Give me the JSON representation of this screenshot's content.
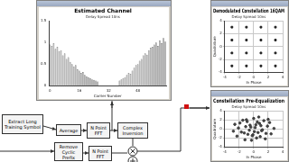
{
  "chart_data": [
    {
      "type": "bar",
      "title": "Estimated Channel",
      "subtitle": "Delay Spread 10ns",
      "x_label": "Carrier Number",
      "categories": [
        "0",
        null,
        null,
        null,
        null,
        null,
        null,
        null,
        null,
        null,
        null,
        null,
        null,
        null,
        null,
        null,
        "16",
        null,
        null,
        null,
        null,
        null,
        null,
        null,
        null,
        null,
        null,
        null,
        null,
        null,
        null,
        null,
        "32",
        null,
        null,
        null,
        null,
        null,
        null,
        null,
        null,
        null,
        null,
        null,
        null,
        null,
        null,
        null,
        "48",
        null,
        null,
        null,
        null,
        null,
        null,
        null,
        null,
        null,
        null,
        null,
        null,
        null,
        null,
        null
      ],
      "values": [
        0.95,
        0.92,
        0.98,
        0.85,
        0.9,
        0.8,
        0.82,
        0.7,
        0.75,
        0.62,
        0.66,
        0.55,
        0.5,
        0.45,
        0.48,
        0.38,
        0.35,
        0.3,
        0.32,
        0.25,
        0.22,
        0.2,
        0.18,
        0.15,
        0.14,
        0.12,
        0.1,
        null,
        null,
        null,
        null,
        null,
        null,
        null,
        null,
        null,
        null,
        null,
        0.12,
        0.15,
        0.18,
        0.2,
        0.25,
        0.3,
        0.28,
        0.35,
        0.42,
        0.48,
        0.5,
        0.58,
        0.62,
        0.7,
        0.75,
        0.72,
        0.82,
        0.88,
        0.9,
        0.95,
        1.0,
        0.92,
        1.05,
        0.98,
        1.1,
        1.02
      ],
      "color": "#b0b0b0",
      "ylim": [
        0,
        1.5
      ],
      "yticks": [
        0,
        0.5,
        1,
        1.5
      ],
      "grid": false
    },
    {
      "type": "scatter",
      "title": "Demodulated Constellation 16QAM",
      "subtitle": "Delay Spread 10ns",
      "x_label": "In Phase",
      "y_label": "Quadrature",
      "x": [
        -3,
        -1,
        1,
        3,
        -3,
        -1,
        1,
        3,
        -3,
        -1,
        1,
        3,
        -3,
        -1,
        1,
        3
      ],
      "values": [
        3,
        3,
        3,
        3,
        1,
        1,
        1,
        1,
        -1,
        -1,
        -1,
        -1,
        -3,
        -3,
        -3,
        -3
      ],
      "color": "#202020",
      "marker": "square",
      "xlim": [
        -4,
        4
      ],
      "xticks": [
        -4,
        -2,
        0,
        2,
        4
      ],
      "ylim": [
        -4,
        4
      ],
      "yticks": [
        -4,
        -2,
        0,
        2,
        4
      ],
      "grid": true
    },
    {
      "type": "scatter",
      "title": "Constellation Pre-Equalization",
      "subtitle": "Delay Spread 10ns",
      "x_label": "In Phase",
      "y_label": "Quadrature",
      "x": [
        0.2,
        -0.5,
        1.1,
        -1.3,
        0.8,
        -0.2,
        1.9,
        -2.1,
        0.4,
        -0.9,
        2.4,
        -1.7,
        0.0,
        1.4,
        -0.6,
        0.9,
        -2.6,
        2.0,
        -1.1,
        0.6,
        -0.3,
        1.6,
        -1.5,
        0.3,
        2.8,
        -2.3,
        1.2,
        -0.8,
        0.7,
        -1.9,
        0.1,
        -0.4,
        1.7,
        -1.0,
        2.2,
        -2.8,
        0.5,
        -1.2,
        1.0,
        -0.1
      ],
      "values": [
        0.3,
        0.8,
        -0.4,
        -0.9,
        1.2,
        -1.5,
        0.6,
        0.2,
        -2.0,
        1.6,
        -1.1,
        -0.7,
        2.3,
        1.8,
        -0.3,
        -1.7,
        1.0,
        2.1,
        0.5,
        -0.8,
        -2.5,
        -2.2,
        1.9,
        0.9,
        0.1,
        -1.6,
        -0.2,
        -1.2,
        2.6,
        1.3,
        -0.6,
        0.4,
        -1.0,
        2.0,
        1.4,
        -0.5,
        1.5,
        -2.4,
        0.7,
        -1.3
      ],
      "color": "#404040",
      "marker": "circle",
      "xlim": [
        -4,
        4
      ],
      "xticks": [
        -4,
        -2,
        0,
        2,
        4
      ],
      "ylim": [
        -4,
        4
      ],
      "yticks": [
        -4,
        -2,
        0,
        2,
        4
      ],
      "grid": true
    }
  ],
  "diagram": {
    "nodes": [
      {
        "label": "Extract Long Training Symbol"
      },
      {
        "label": "Average"
      },
      {
        "label": "N Point FFT"
      },
      {
        "label": "Complex Inversion"
      },
      {
        "label": "Remove Cyclic Prefix"
      },
      {
        "label": "N Point FFT"
      }
    ]
  }
}
